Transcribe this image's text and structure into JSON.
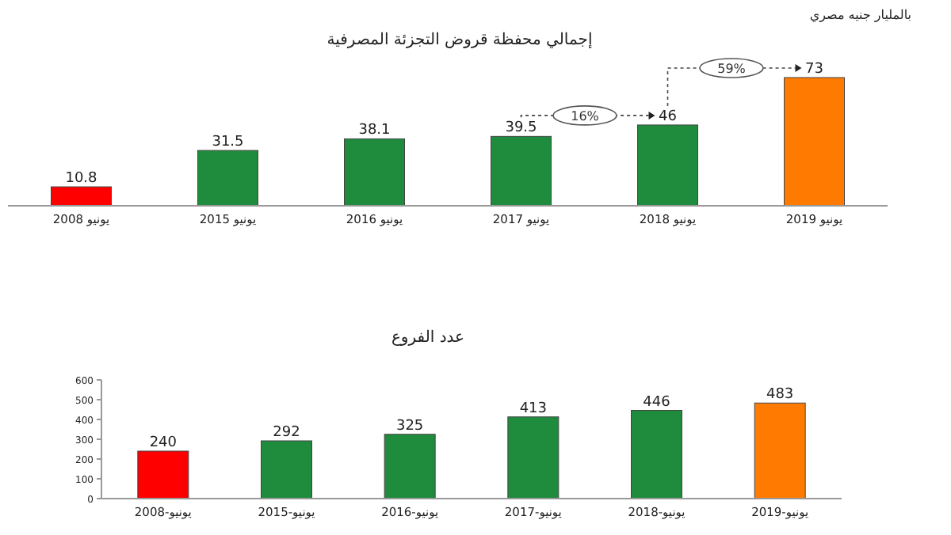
{
  "chart_data": [
    {
      "type": "bar",
      "title": "إجمالي محفظة قروض التجزئة المصرفية",
      "subtitle": "بالمليار جنيه مصري",
      "categories": [
        "يونيو 2008",
        "يونيو 2015",
        "يونيو 2016",
        "يونيو 2017",
        "يونيو 2018",
        "يونيو 2019"
      ],
      "values": [
        10.8,
        31.5,
        38.1,
        39.5,
        46,
        73
      ],
      "colors": [
        "#ff0000",
        "#1e8c3c",
        "#1e8c3c",
        "#1e8c3c",
        "#1e8c3c",
        "#ff7a00"
      ],
      "data_labels": true,
      "annotations": [
        "16%",
        "59%"
      ]
    },
    {
      "type": "bar",
      "title": "عدد الفروع",
      "categories": [
        "يونيو-2008",
        "يونيو-2015",
        "يونيو-2016",
        "يونيو-2017",
        "يونيو-2018",
        "يونيو-2019"
      ],
      "values": [
        240,
        292,
        325,
        413,
        446,
        483
      ],
      "colors": [
        "#ff0000",
        "#1e8c3c",
        "#1e8c3c",
        "#1e8c3c",
        "#1e8c3c",
        "#ff7a00"
      ],
      "ylim": [
        0,
        600
      ],
      "yticks": [
        0,
        100,
        200,
        300,
        400,
        500,
        600
      ],
      "data_labels": true
    }
  ]
}
